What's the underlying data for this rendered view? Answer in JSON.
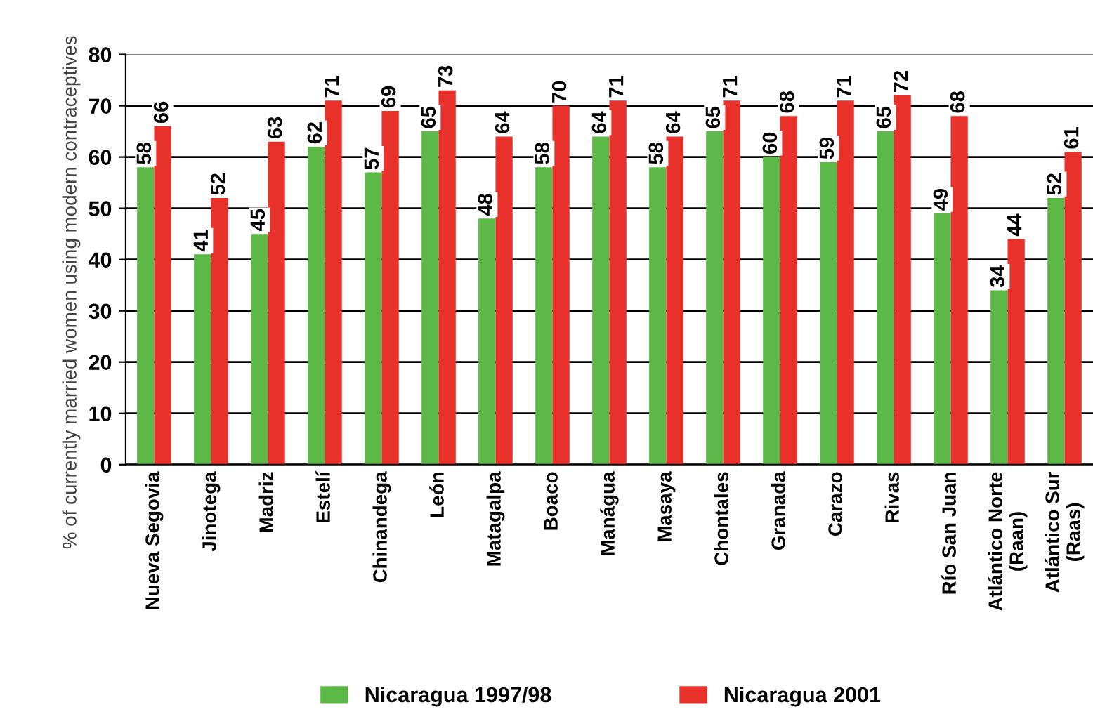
{
  "chart_data": {
    "type": "bar",
    "ylabel": "% of currently married women using modern contraceptives",
    "categories": [
      "Nueva Segovia",
      "Jinotega",
      "Madriz",
      "Estelí",
      "Chinandega",
      "León",
      "Matagalpa",
      "Boaco",
      "Manágua",
      "Masaya",
      "Chontales",
      "Granada",
      "Carazo",
      "Rivas",
      "Río San Juan",
      "Atlántico Norte\n(Raan)",
      "Atlántico Sur\n(Raas)"
    ],
    "series": [
      {
        "name": "Nicaragua 1997/98",
        "color": "#5cb947",
        "values": [
          58,
          41,
          45,
          62,
          57,
          65,
          48,
          58,
          64,
          58,
          65,
          60,
          59,
          65,
          49,
          34,
          52
        ]
      },
      {
        "name": "Nicaragua 2001",
        "color": "#e8312a",
        "values": [
          66,
          52,
          63,
          71,
          69,
          73,
          64,
          70,
          71,
          64,
          71,
          68,
          71,
          72,
          68,
          44,
          61
        ]
      }
    ],
    "ylim": [
      0,
      80
    ],
    "yticks": [
      0,
      10,
      20,
      30,
      40,
      50,
      60,
      70,
      80
    ],
    "grid": "y",
    "legend": "bottom",
    "data_labels": true
  }
}
